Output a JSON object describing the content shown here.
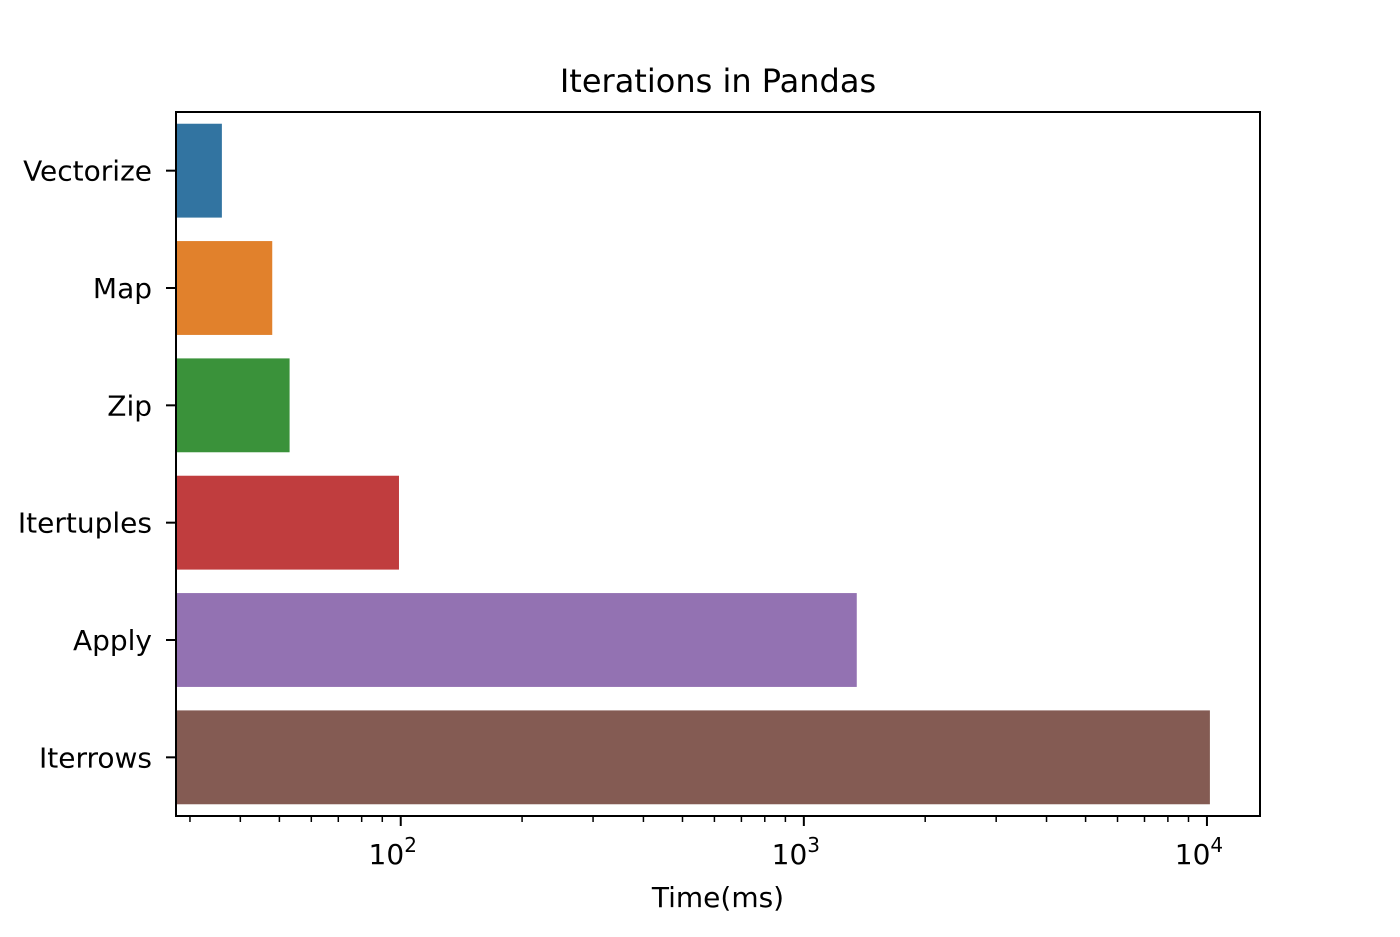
{
  "chart_data": {
    "type": "bar",
    "orientation": "horizontal",
    "title": "Iterations in Pandas",
    "xlabel": "Time(ms)",
    "ylabel": "",
    "xscale": "log",
    "xlim": [
      27.7,
      13540
    ],
    "grid": false,
    "categories": [
      "Vectorize",
      "Map",
      "Zip",
      "Itertuples",
      "Apply",
      "Iterrows"
    ],
    "values": [
      36,
      48,
      53,
      99,
      1353,
      10170
    ],
    "colors": [
      "#3274a1",
      "#e1812c",
      "#3a923a",
      "#c03d3e",
      "#9372b2",
      "#845b53"
    ],
    "xticks": [
      {
        "value": 100,
        "base": "10",
        "exp": "2"
      },
      {
        "value": 1000,
        "base": "10",
        "exp": "3"
      },
      {
        "value": 10000,
        "base": "10",
        "exp": "4"
      }
    ]
  }
}
